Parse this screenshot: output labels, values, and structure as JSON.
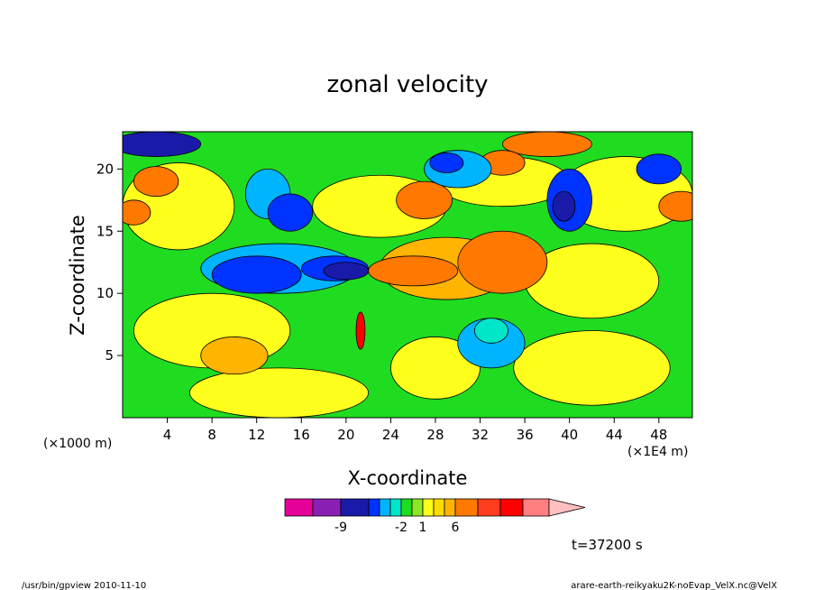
{
  "chart_data": {
    "type": "heatmap",
    "title": "zonal velocity",
    "xlabel": "X-coordinate",
    "ylabel": "Z-coordinate",
    "x_unit_label": "(×1000 m)",
    "x_scale_label": "(×1E4 m)",
    "xlim": [
      0,
      51
    ],
    "ylim": [
      0,
      23
    ],
    "x_ticks": [
      4,
      8,
      12,
      16,
      20,
      24,
      28,
      32,
      36,
      40,
      44,
      48
    ],
    "y_ticks": [
      5,
      10,
      15,
      20
    ],
    "time_label": "t=37200 s",
    "colorbar": {
      "tick_labels": [
        "-9",
        "-2",
        "1",
        "6"
      ],
      "colors": [
        "#e6009a",
        "#8a1fb4",
        "#1a1aa8",
        "#0033ff",
        "#00b4ff",
        "#00e6c8",
        "#20dc20",
        "#8ce628",
        "#ffff1e",
        "#ffdc00",
        "#ffb400",
        "#ff7800",
        "#ff3c1e",
        "#ff0000",
        "#ff7f7f",
        "#ffc0c0"
      ],
      "tick_positions": [
        2,
        6,
        8,
        11
      ]
    },
    "field": {
      "background": "#20dc20",
      "regions": [
        {
          "x": 8,
          "y": 7,
          "rx": 7,
          "ry": 3,
          "color": "#ffff1e"
        },
        {
          "x": 14,
          "y": 2,
          "rx": 8,
          "ry": 2,
          "color": "#ffff1e"
        },
        {
          "x": 28,
          "y": 4,
          "rx": 4,
          "ry": 2.5,
          "color": "#ffff1e"
        },
        {
          "x": 42,
          "y": 4,
          "rx": 7,
          "ry": 3,
          "color": "#ffff1e"
        },
        {
          "x": 42,
          "y": 11,
          "rx": 6,
          "ry": 3,
          "color": "#ffff1e"
        },
        {
          "x": 5,
          "y": 17,
          "rx": 5,
          "ry": 3.5,
          "color": "#ffff1e"
        },
        {
          "x": 23,
          "y": 17,
          "rx": 6,
          "ry": 2.5,
          "color": "#ffff1e"
        },
        {
          "x": 45,
          "y": 18,
          "rx": 6,
          "ry": 3,
          "color": "#ffff1e"
        },
        {
          "x": 34,
          "y": 19,
          "rx": 6,
          "ry": 2,
          "color": "#ffff1e"
        },
        {
          "x": 10,
          "y": 5,
          "rx": 3,
          "ry": 1.5,
          "color": "#ffb400"
        },
        {
          "x": 29,
          "y": 12,
          "rx": 6,
          "ry": 2.5,
          "color": "#ffb400"
        },
        {
          "x": 34,
          "y": 12.5,
          "rx": 4,
          "ry": 2.5,
          "color": "#ff7800"
        },
        {
          "x": 26,
          "y": 11.8,
          "rx": 4,
          "ry": 1.2,
          "color": "#ff7800"
        },
        {
          "x": 27,
          "y": 17.5,
          "rx": 2.5,
          "ry": 1.5,
          "color": "#ff7800"
        },
        {
          "x": 3,
          "y": 19,
          "rx": 2,
          "ry": 1.2,
          "color": "#ff7800"
        },
        {
          "x": 1,
          "y": 16.5,
          "rx": 1.5,
          "ry": 1,
          "color": "#ff7800"
        },
        {
          "x": 50,
          "y": 17,
          "rx": 2,
          "ry": 1.2,
          "color": "#ff7800"
        },
        {
          "x": 38,
          "y": 22,
          "rx": 4,
          "ry": 1,
          "color": "#ff7800"
        },
        {
          "x": 34,
          "y": 20.5,
          "rx": 2,
          "ry": 1,
          "color": "#ff7800"
        },
        {
          "x": 14,
          "y": 12,
          "rx": 7,
          "ry": 2,
          "color": "#00b4ff"
        },
        {
          "x": 12,
          "y": 11.5,
          "rx": 4,
          "ry": 1.5,
          "color": "#0033ff"
        },
        {
          "x": 19,
          "y": 12,
          "rx": 3,
          "ry": 1,
          "color": "#0033ff"
        },
        {
          "x": 20,
          "y": 11.8,
          "rx": 2,
          "ry": 0.7,
          "color": "#1a1aa8"
        },
        {
          "x": 33,
          "y": 6,
          "rx": 3,
          "ry": 2,
          "color": "#00b4ff"
        },
        {
          "x": 33,
          "y": 7,
          "rx": 1.5,
          "ry": 1,
          "color": "#00e6c8"
        },
        {
          "x": 13,
          "y": 18,
          "rx": 2,
          "ry": 2,
          "color": "#00b4ff"
        },
        {
          "x": 15,
          "y": 16.5,
          "rx": 2,
          "ry": 1.5,
          "color": "#0033ff"
        },
        {
          "x": 40,
          "y": 17.5,
          "rx": 2,
          "ry": 2.5,
          "color": "#0033ff"
        },
        {
          "x": 39.5,
          "y": 17,
          "rx": 1,
          "ry": 1.2,
          "color": "#1a1aa8"
        },
        {
          "x": 48,
          "y": 20,
          "rx": 2,
          "ry": 1.2,
          "color": "#0033ff"
        },
        {
          "x": 3,
          "y": 22,
          "rx": 4,
          "ry": 1,
          "color": "#1a1aa8"
        },
        {
          "x": 30,
          "y": 20,
          "rx": 3,
          "ry": 1.5,
          "color": "#00b4ff"
        },
        {
          "x": 29,
          "y": 20.5,
          "rx": 1.5,
          "ry": 0.8,
          "color": "#0033ff"
        },
        {
          "x": 21.3,
          "y": 7,
          "rx": 0.4,
          "ry": 1.5,
          "color": "#ff0000"
        }
      ]
    }
  },
  "footer": {
    "left": "/usr/bin/gpview   2010-11-10",
    "right": "arare-earth-reikyaku2K-noEvap_VelX.nc@VelX"
  }
}
